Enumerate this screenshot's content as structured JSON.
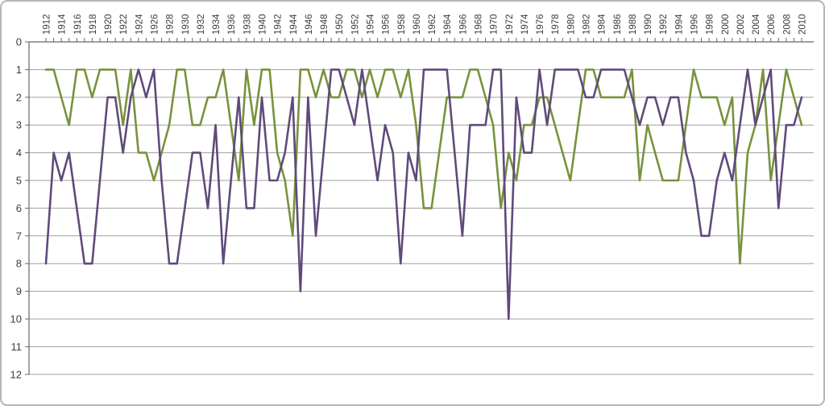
{
  "chart_data": {
    "type": "line",
    "title": "",
    "xlabel": "",
    "ylabel": "",
    "legend": "none",
    "grid": "horizontal",
    "y_axis_inverted": true,
    "ylim": [
      0,
      12
    ],
    "y_ticks": [
      0,
      1,
      2,
      3,
      4,
      5,
      6,
      7,
      8,
      9,
      10,
      11,
      12
    ],
    "x_tick_labels": [
      1912,
      1914,
      1916,
      1918,
      1920,
      1922,
      1924,
      1926,
      1928,
      1930,
      1932,
      1934,
      1936,
      1938,
      1940,
      1942,
      1944,
      1946,
      1948,
      1950,
      1952,
      1954,
      1956,
      1958,
      1960,
      1962,
      1964,
      1966,
      1968,
      1970,
      1972,
      1974,
      1976,
      1978,
      1980,
      1982,
      1984,
      1986,
      1988,
      1990,
      1992,
      1994,
      1996,
      1998,
      2000,
      2002,
      2004,
      2006,
      2008,
      2010
    ],
    "x": [
      1912,
      1913,
      1914,
      1915,
      1916,
      1917,
      1918,
      1919,
      1920,
      1921,
      1922,
      1923,
      1924,
      1925,
      1926,
      1927,
      1928,
      1929,
      1930,
      1931,
      1932,
      1933,
      1934,
      1935,
      1936,
      1937,
      1938,
      1939,
      1940,
      1941,
      1942,
      1943,
      1944,
      1945,
      1946,
      1947,
      1948,
      1949,
      1950,
      1951,
      1952,
      1953,
      1954,
      1955,
      1956,
      1957,
      1958,
      1959,
      1960,
      1961,
      1962,
      1963,
      1964,
      1965,
      1966,
      1967,
      1968,
      1969,
      1970,
      1971,
      1972,
      1973,
      1974,
      1975,
      1976,
      1977,
      1978,
      1979,
      1980,
      1981,
      1982,
      1983,
      1984,
      1985,
      1986,
      1987,
      1988,
      1989,
      1990,
      1991,
      1992,
      1993,
      1994,
      1995,
      1996,
      1997,
      1998,
      1999,
      2000,
      2001,
      2002,
      2003,
      2004,
      2005,
      2006,
      2007,
      2008,
      2009,
      2010
    ],
    "series": [
      {
        "name": "green-series",
        "color": "#77933C",
        "values": [
          1,
          1,
          2,
          3,
          1,
          1,
          2,
          1,
          1,
          1,
          3,
          1,
          4,
          4,
          5,
          4,
          3,
          1,
          1,
          3,
          3,
          2,
          2,
          1,
          3,
          5,
          1,
          3,
          1,
          1,
          4,
          5,
          7,
          1,
          1,
          2,
          1,
          2,
          2,
          1,
          1,
          2,
          1,
          2,
          1,
          1,
          2,
          1,
          3,
          6,
          6,
          4,
          2,
          2,
          2,
          1,
          1,
          2,
          3,
          6,
          4,
          5,
          3,
          3,
          2,
          2,
          3,
          4,
          5,
          3,
          1,
          1,
          2,
          2,
          2,
          2,
          1,
          5,
          3,
          4,
          5,
          5,
          5,
          3,
          1,
          2,
          2,
          2,
          3,
          2,
          8,
          4,
          3,
          1,
          5,
          3,
          1,
          2,
          3
        ]
      },
      {
        "name": "purple-series",
        "color": "#604A7B",
        "values": [
          8,
          4,
          5,
          4,
          6,
          8,
          8,
          5,
          2,
          2,
          4,
          2,
          1,
          2,
          1,
          5,
          8,
          8,
          6,
          4,
          4,
          6,
          3,
          8,
          5,
          2,
          6,
          6,
          2,
          5,
          5,
          4,
          2,
          9,
          2,
          7,
          4,
          1,
          1,
          2,
          3,
          1,
          3,
          5,
          3,
          4,
          8,
          4,
          5,
          1,
          1,
          1,
          1,
          4,
          7,
          3,
          3,
          3,
          1,
          1,
          10,
          2,
          4,
          4,
          1,
          3,
          1,
          1,
          1,
          1,
          2,
          2,
          1,
          1,
          1,
          1,
          2,
          3,
          2,
          2,
          3,
          2,
          2,
          4,
          5,
          7,
          7,
          5,
          4,
          5,
          3,
          1,
          3,
          2,
          1,
          6,
          3,
          3,
          2
        ]
      }
    ],
    "styles": {
      "background": "#FFFFFF",
      "gridline_color": "#A0A0A0",
      "axis_color": "#666666",
      "tick_color": "#666666",
      "tick_label_color": "#3D3D3D"
    }
  },
  "frame": {
    "border_color": "#B6B6B6"
  }
}
